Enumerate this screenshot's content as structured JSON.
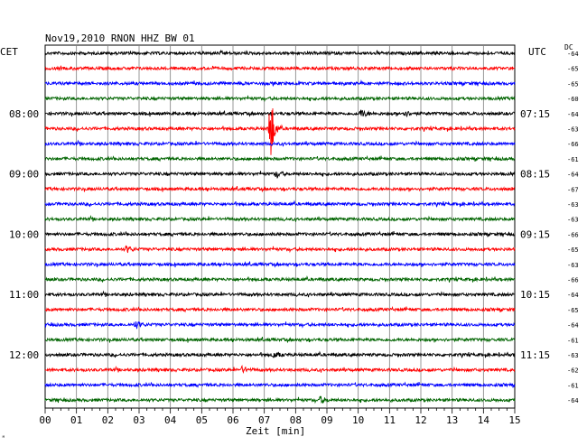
{
  "chart_data": {
    "type": "line",
    "title": "Nov19,2010   RNON HHZ BW 01",
    "left_timezone": "CET",
    "right_timezone": "UTC",
    "dc_header": "DC",
    "xlabel": "Zeit [min]",
    "x_range": [
      0,
      15
    ],
    "x_ticks": [
      "00",
      "01",
      "02",
      "03",
      "04",
      "05",
      "06",
      "07",
      "08",
      "09",
      "10",
      "11",
      "12",
      "13",
      "14",
      "15"
    ],
    "grid": true,
    "trace_colors": [
      "#000000",
      "#ff0000",
      "#0000ff",
      "#006400"
    ],
    "left_hour_labels": [
      {
        "trace": 4,
        "label": "08:00"
      },
      {
        "trace": 8,
        "label": "09:00"
      },
      {
        "trace": 12,
        "label": "10:00"
      },
      {
        "trace": 16,
        "label": "11:00"
      },
      {
        "trace": 20,
        "label": "12:00"
      }
    ],
    "right_hour_labels": [
      {
        "trace": 4,
        "label": "07:15"
      },
      {
        "trace": 8,
        "label": "08:15"
      },
      {
        "trace": 12,
        "label": "09:15"
      },
      {
        "trace": 16,
        "label": "10:15"
      },
      {
        "trace": 20,
        "label": "11:15"
      }
    ],
    "dc_offsets": [
      "-64",
      "-65",
      "-65",
      "-60",
      "-64",
      "-63",
      "-66",
      "-61",
      "-64",
      "-67",
      "-63",
      "-63",
      "-66",
      "-65",
      "-63",
      "-66",
      "-64",
      "-65",
      "-64",
      "-61",
      "-63",
      "-62",
      "-61",
      "-64"
    ],
    "events": [
      {
        "trace": 5,
        "minute": 7.2,
        "amplitude": 1.0
      },
      {
        "trace": 4,
        "minute": 10.1,
        "amplitude": 0.25
      },
      {
        "trace": 4,
        "minute": 11.5,
        "amplitude": 0.18
      },
      {
        "trace": 8,
        "minute": 7.4,
        "amplitude": 0.2
      },
      {
        "trace": 13,
        "minute": 2.6,
        "amplitude": 0.2
      },
      {
        "trace": 18,
        "minute": 2.9,
        "amplitude": 0.22
      },
      {
        "trace": 20,
        "minute": 7.3,
        "amplitude": 0.18
      },
      {
        "trace": 21,
        "minute": 6.3,
        "amplitude": 0.18
      },
      {
        "trace": 23,
        "minute": 8.8,
        "amplitude": 0.2
      }
    ]
  }
}
